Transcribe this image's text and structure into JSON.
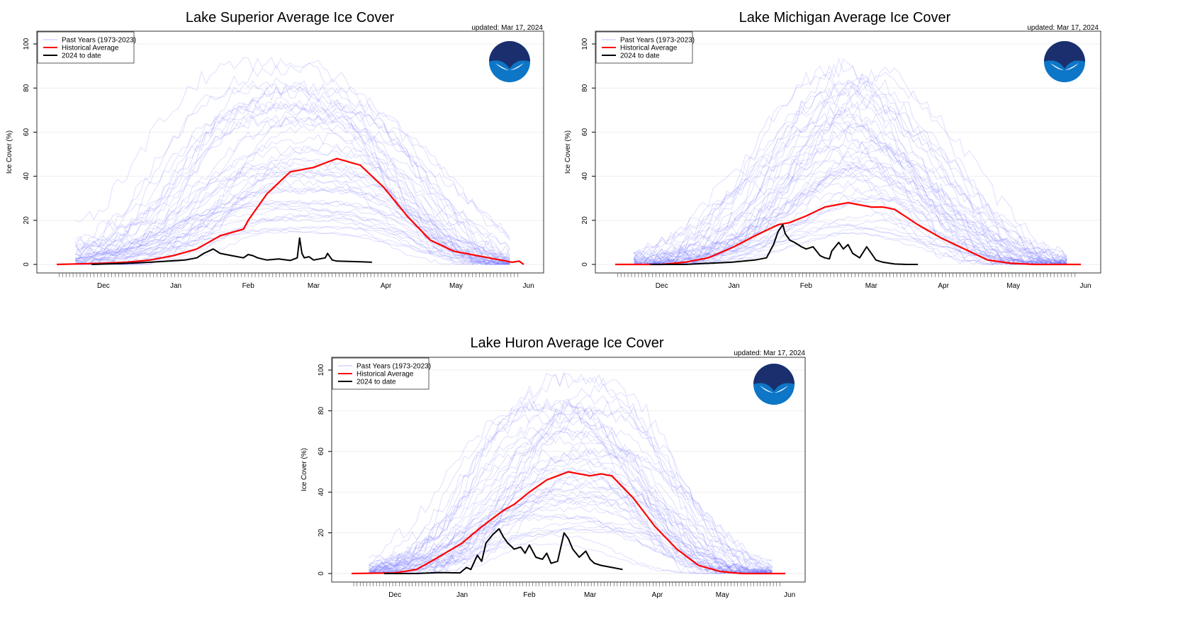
{
  "chart_data": [
    {
      "type": "line",
      "title": "Lake Superior Average Ice Cover",
      "updated": "updated: Mar 17, 2024",
      "xlabel": "",
      "ylabel": "Ice Cover (%)",
      "ylim": [
        0,
        100
      ],
      "yticks": [
        "0",
        "20",
        "40",
        "60",
        "80",
        "100"
      ],
      "x_tick_labels": [
        "Dec",
        "Jan",
        "Feb",
        "Mar",
        "Apr",
        "May",
        "Jun"
      ],
      "x_range_days": [
        -20,
        180
      ],
      "grid": true,
      "legend_position": "top-left",
      "logo": "noaa-logo",
      "legend": [
        "Past Years (1973-2023)",
        "Historical Average",
        "2024 to date"
      ],
      "series": [
        {
          "name": "Historical Average",
          "color": "#ff0000",
          "x": [
            -20,
            0,
            10,
            20,
            30,
            40,
            50,
            60,
            62,
            70,
            75,
            80,
            85,
            90,
            95,
            100,
            110,
            120,
            130,
            140,
            150,
            160,
            170,
            175,
            178,
            180
          ],
          "y": [
            0,
            0.5,
            1,
            2,
            4,
            7,
            13,
            16,
            20,
            32,
            37,
            42,
            43,
            44,
            46,
            48,
            45,
            35,
            22,
            11,
            6,
            4,
            2,
            1,
            1.5,
            0
          ]
        },
        {
          "name": "2024 to date",
          "color": "#000000",
          "x": [
            -5,
            10,
            20,
            35,
            40,
            43,
            45,
            47,
            50,
            55,
            60,
            62,
            64,
            66,
            70,
            75,
            80,
            83,
            84,
            85,
            86,
            88,
            90,
            95,
            96,
            98,
            100,
            110,
            115
          ],
          "y": [
            0,
            0.5,
            1,
            2,
            3,
            5,
            6,
            7,
            5,
            4,
            3,
            4.5,
            4,
            3,
            2,
            2.5,
            1.8,
            3,
            12,
            5,
            3,
            3.5,
            2,
            3,
            5,
            2,
            1.5,
            1.2,
            1
          ]
        }
      ],
      "past_years_envelope": {
        "x": [
          -10,
          10,
          25,
          40,
          55,
          70,
          85,
          100,
          115,
          130,
          145,
          160,
          175
        ],
        "y": [
          5,
          15,
          30,
          60,
          85,
          95,
          96,
          95,
          85,
          60,
          30,
          10,
          2
        ]
      }
    },
    {
      "type": "line",
      "title": "Lake Michigan Average Ice Cover",
      "updated": "updated: Mar 17, 2024",
      "xlabel": "",
      "ylabel": "Ice Cover (%)",
      "ylim": [
        0,
        100
      ],
      "yticks": [
        "0",
        "20",
        "40",
        "60",
        "80",
        "100"
      ],
      "x_tick_labels": [
        "Dec",
        "Jan",
        "Feb",
        "Mar",
        "Apr",
        "May",
        "Jun"
      ],
      "x_range_days": [
        -20,
        180
      ],
      "grid": true,
      "legend_position": "top-left",
      "logo": "noaa-logo",
      "legend": [
        "Past Years (1973-2023)",
        "Historical Average",
        "2024 to date"
      ],
      "series": [
        {
          "name": "Historical Average",
          "color": "#ff0000",
          "x": [
            -20,
            0,
            10,
            20,
            31,
            40,
            50,
            55,
            62,
            70,
            75,
            80,
            85,
            90,
            95,
            100,
            110,
            120,
            130,
            140,
            150,
            160,
            180
          ],
          "y": [
            0,
            0,
            1,
            3,
            8,
            13,
            18,
            19,
            22,
            26,
            27,
            28,
            27,
            26,
            26,
            25,
            18,
            12,
            7,
            2,
            0.5,
            0,
            0
          ]
        },
        {
          "name": "2024 to date",
          "color": "#000000",
          "x": [
            -5,
            10,
            20,
            30,
            40,
            45,
            48,
            50,
            52,
            53,
            55,
            57,
            60,
            62,
            65,
            68,
            70,
            72,
            73,
            76,
            78,
            80,
            82,
            85,
            88,
            90,
            92,
            95,
            100,
            105,
            110
          ],
          "y": [
            0,
            0,
            0.5,
            1,
            2,
            3,
            9,
            15,
            18,
            14,
            11,
            10,
            8,
            7,
            8,
            4,
            3,
            2.5,
            6,
            10,
            7,
            9,
            5,
            3,
            8,
            5,
            2,
            1,
            0.2,
            0,
            0
          ]
        }
      ],
      "past_years_envelope": {
        "x": [
          -10,
          10,
          25,
          40,
          55,
          70,
          85,
          100,
          115,
          130,
          145,
          160,
          175
        ],
        "y": [
          2,
          8,
          20,
          40,
          65,
          85,
          92,
          75,
          55,
          30,
          12,
          3,
          0
        ]
      }
    },
    {
      "type": "line",
      "title": "Lake Huron Average Ice Cover",
      "updated": "updated: Mar 17, 2024",
      "xlabel": "",
      "ylabel": "Ice Cover (%)",
      "ylim": [
        0,
        100
      ],
      "yticks": [
        "0",
        "20",
        "40",
        "60",
        "80",
        "100"
      ],
      "x_tick_labels": [
        "Dec",
        "Jan",
        "Feb",
        "Mar",
        "Apr",
        "May",
        "Jun"
      ],
      "x_range_days": [
        -20,
        180
      ],
      "grid": true,
      "legend_position": "top-left",
      "logo": "noaa-logo",
      "legend": [
        "Past Years (1973-2023)",
        "Historical Average",
        "2024 to date"
      ],
      "series": [
        {
          "name": "Historical Average",
          "color": "#ff0000",
          "x": [
            -20,
            0,
            10,
            20,
            31,
            40,
            50,
            55,
            62,
            70,
            75,
            80,
            85,
            90,
            95,
            100,
            110,
            120,
            130,
            140,
            150,
            160,
            180
          ],
          "y": [
            0,
            0.3,
            2,
            8,
            15,
            23,
            31,
            34,
            40,
            46,
            48,
            50,
            49,
            48,
            49,
            48,
            37,
            23,
            12,
            4,
            1,
            0,
            0
          ]
        },
        {
          "name": "2024 to date",
          "color": "#000000",
          "x": [
            -5,
            10,
            20,
            30,
            33,
            35,
            38,
            40,
            42,
            45,
            48,
            50,
            52,
            55,
            58,
            60,
            62,
            65,
            68,
            70,
            72,
            75,
            78,
            80,
            82,
            85,
            88,
            90,
            92,
            95,
            100,
            105
          ],
          "y": [
            0,
            0,
            0.5,
            0.3,
            3,
            2,
            9,
            6,
            15,
            19,
            22,
            18,
            15,
            12,
            13,
            10,
            14,
            8,
            7,
            10,
            5,
            6,
            20,
            17,
            12,
            8,
            11,
            7,
            5,
            4,
            3,
            2
          ]
        }
      ],
      "past_years_envelope": {
        "x": [
          -10,
          10,
          25,
          40,
          55,
          70,
          85,
          100,
          115,
          130,
          145,
          160,
          175
        ],
        "y": [
          3,
          12,
          28,
          58,
          82,
          95,
          96,
          92,
          70,
          40,
          15,
          3,
          0
        ]
      }
    }
  ]
}
